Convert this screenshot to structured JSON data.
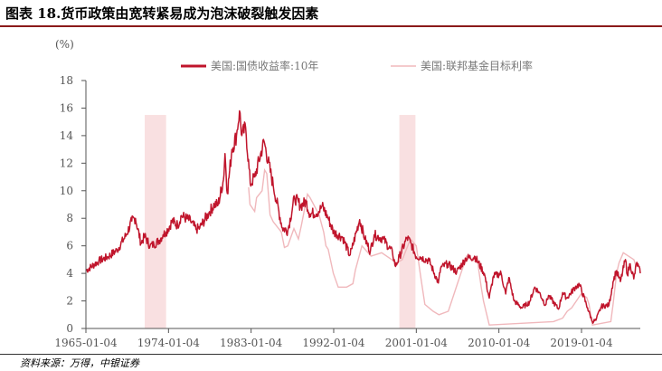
{
  "title": "图表 18.货币政策由宽转紧易成为泡沫破裂触发因素",
  "source": "资料来源：万得，中银证券",
  "chart_data": {
    "type": "line",
    "ylabel": "(%)",
    "ylim": [
      0,
      18
    ],
    "yticks": [
      0,
      2,
      4,
      6,
      8,
      10,
      12,
      14,
      16,
      18
    ],
    "xticks": [
      "1965-01-04",
      "1974-01-04",
      "1983-01-04",
      "1992-01-04",
      "2001-01-04",
      "2010-01-04",
      "2019-01-04"
    ],
    "xlim": [
      "1965-01-04",
      "2025-06-01"
    ],
    "colors": {
      "treasury": "#c0152c",
      "fed": "#f0b8bc",
      "shade": "#f9e0e1",
      "axis": "#555555"
    },
    "shaded_periods": [
      {
        "start": "1971-06-01",
        "end": "1973-10-01"
      },
      {
        "start": "1999-03-01",
        "end": "2000-12-01"
      }
    ],
    "series": [
      {
        "name": "美国:国债收益率:10年",
        "values": [
          [
            "1965-01-04",
            4.2
          ],
          [
            "1966-06-01",
            4.9
          ],
          [
            "1967-06-01",
            5.2
          ],
          [
            "1968-06-01",
            5.7
          ],
          [
            "1969-06-01",
            6.8
          ],
          [
            "1970-01-01",
            7.8
          ],
          [
            "1970-06-01",
            8.0
          ],
          [
            "1971-01-01",
            6.2
          ],
          [
            "1971-06-01",
            6.7
          ],
          [
            "1972-01-01",
            6.0
          ],
          [
            "1972-06-01",
            6.1
          ],
          [
            "1973-01-01",
            6.4
          ],
          [
            "1973-06-01",
            6.8
          ],
          [
            "1973-10-01",
            7.0
          ],
          [
            "1974-06-01",
            7.8
          ],
          [
            "1975-01-01",
            7.5
          ],
          [
            "1975-06-01",
            8.2
          ],
          [
            "1976-06-01",
            7.8
          ],
          [
            "1977-01-01",
            7.2
          ],
          [
            "1977-06-01",
            7.3
          ],
          [
            "1978-06-01",
            8.4
          ],
          [
            "1979-01-01",
            9.0
          ],
          [
            "1979-06-01",
            9.0
          ],
          [
            "1980-01-01",
            10.8
          ],
          [
            "1980-03-01",
            12.7
          ],
          [
            "1980-06-01",
            9.8
          ],
          [
            "1980-12-01",
            13.0
          ],
          [
            "1981-06-01",
            14.0
          ],
          [
            "1981-09-30",
            15.8
          ],
          [
            "1982-01-01",
            14.0
          ],
          [
            "1982-06-01",
            14.6
          ],
          [
            "1982-12-01",
            10.5
          ],
          [
            "1983-06-01",
            11.0
          ],
          [
            "1984-06-01",
            13.6
          ],
          [
            "1985-06-01",
            10.4
          ],
          [
            "1986-06-01",
            7.3
          ],
          [
            "1987-01-01",
            7.1
          ],
          [
            "1987-10-01",
            9.5
          ],
          [
            "1988-06-01",
            8.9
          ],
          [
            "1989-01-01",
            9.2
          ],
          [
            "1989-06-01",
            8.3
          ],
          [
            "1990-06-01",
            8.5
          ],
          [
            "1990-10-01",
            8.9
          ],
          [
            "1991-06-01",
            8.0
          ],
          [
            "1992-01-01",
            7.0
          ],
          [
            "1993-01-01",
            6.6
          ],
          [
            "1993-10-01",
            5.3
          ],
          [
            "1994-01-01",
            5.8
          ],
          [
            "1994-11-01",
            7.9
          ],
          [
            "1995-06-01",
            6.5
          ],
          [
            "1996-01-01",
            5.6
          ],
          [
            "1996-06-01",
            6.8
          ],
          [
            "1997-06-01",
            6.5
          ],
          [
            "1998-06-01",
            5.5
          ],
          [
            "1998-10-01",
            4.5
          ],
          [
            "1999-03-01",
            5.2
          ],
          [
            "2000-01-01",
            6.6
          ],
          [
            "2000-06-01",
            6.2
          ],
          [
            "2001-01-01",
            5.2
          ],
          [
            "2001-06-01",
            5.2
          ],
          [
            "2002-06-01",
            4.9
          ],
          [
            "2003-06-01",
            3.3
          ],
          [
            "2003-09-01",
            4.4
          ],
          [
            "2004-06-01",
            4.7
          ],
          [
            "2005-06-01",
            4.1
          ],
          [
            "2006-06-01",
            5.1
          ],
          [
            "2007-06-01",
            5.2
          ],
          [
            "2008-06-01",
            4.0
          ],
          [
            "2008-12-15",
            2.2
          ],
          [
            "2009-06-01",
            3.8
          ],
          [
            "2010-04-01",
            4.0
          ],
          [
            "2010-10-01",
            2.5
          ],
          [
            "2011-02-01",
            3.7
          ],
          [
            "2011-09-01",
            2.0
          ],
          [
            "2012-07-01",
            1.5
          ],
          [
            "2013-05-01",
            1.9
          ],
          [
            "2013-12-01",
            3.0
          ],
          [
            "2014-06-01",
            2.6
          ],
          [
            "2015-02-01",
            1.7
          ],
          [
            "2015-06-01",
            2.4
          ],
          [
            "2016-07-01",
            1.4
          ],
          [
            "2016-12-15",
            2.6
          ],
          [
            "2017-06-01",
            2.2
          ],
          [
            "2018-05-01",
            3.0
          ],
          [
            "2018-10-15",
            3.2
          ],
          [
            "2019-09-01",
            1.5
          ],
          [
            "2020-03-09",
            0.5
          ],
          [
            "2020-08-01",
            0.6
          ],
          [
            "2021-03-01",
            1.6
          ],
          [
            "2022-01-01",
            1.7
          ],
          [
            "2022-06-15",
            3.4
          ],
          [
            "2022-10-20",
            4.2
          ],
          [
            "2023-04-01",
            3.4
          ],
          [
            "2023-10-19",
            5.0
          ],
          [
            "2024-01-01",
            3.9
          ],
          [
            "2024-04-25",
            4.7
          ],
          [
            "2024-09-16",
            3.6
          ],
          [
            "2025-01-14",
            4.8
          ],
          [
            "2025-06-01",
            4.0
          ]
        ]
      },
      {
        "name": "美国:联邦基金目标利率",
        "values": [
          [
            "1982-09-27",
            10.25
          ],
          [
            "1982-11-19",
            9.0
          ],
          [
            "1983-05-25",
            8.5
          ],
          [
            "1983-08-08",
            9.5
          ],
          [
            "1984-03-15",
            10.0
          ],
          [
            "1984-06-25",
            11.5
          ],
          [
            "1984-09-20",
            11.25
          ],
          [
            "1985-01-28",
            8.25
          ],
          [
            "1985-06-01",
            7.75
          ],
          [
            "1986-04-21",
            7.0
          ],
          [
            "1986-08-21",
            5.88
          ],
          [
            "1987-01-01",
            6.0
          ],
          [
            "1987-09-04",
            7.25
          ],
          [
            "1988-03-01",
            6.5
          ],
          [
            "1988-06-30",
            7.5
          ],
          [
            "1989-02-24",
            9.75
          ],
          [
            "1989-06-06",
            9.5
          ],
          [
            "1990-06-01",
            8.25
          ],
          [
            "1990-12-01",
            7.0
          ],
          [
            "1991-03-01",
            6.0
          ],
          [
            "1991-06-01",
            5.75
          ],
          [
            "1991-12-20",
            4.0
          ],
          [
            "1992-07-02",
            3.0
          ],
          [
            "1993-06-01",
            3.0
          ],
          [
            "1994-02-04",
            3.25
          ],
          [
            "1994-05-17",
            4.25
          ],
          [
            "1995-02-01",
            6.0
          ],
          [
            "1996-01-31",
            5.25
          ],
          [
            "1997-03-25",
            5.5
          ],
          [
            "1998-11-17",
            4.75
          ],
          [
            "1999-06-30",
            5.0
          ],
          [
            "2000-05-16",
            6.5
          ],
          [
            "2001-01-03",
            6.0
          ],
          [
            "2001-06-27",
            3.75
          ],
          [
            "2001-12-11",
            1.75
          ],
          [
            "2002-11-06",
            1.25
          ],
          [
            "2003-06-25",
            1.0
          ],
          [
            "2004-06-30",
            1.25
          ],
          [
            "2005-06-30",
            3.25
          ],
          [
            "2006-06-29",
            5.25
          ],
          [
            "2007-09-18",
            4.75
          ],
          [
            "2008-01-30",
            3.0
          ],
          [
            "2008-04-30",
            2.0
          ],
          [
            "2008-12-16",
            0.25
          ],
          [
            "2015-12-16",
            0.5
          ],
          [
            "2016-12-14",
            0.75
          ],
          [
            "2017-06-14",
            1.25
          ],
          [
            "2017-12-13",
            1.5
          ],
          [
            "2018-06-13",
            2.0
          ],
          [
            "2018-12-19",
            2.5
          ],
          [
            "2019-07-31",
            2.25
          ],
          [
            "2019-10-30",
            1.75
          ],
          [
            "2020-03-15",
            0.25
          ],
          [
            "2022-03-16",
            0.5
          ],
          [
            "2022-06-15",
            1.75
          ],
          [
            "2022-11-02",
            4.0
          ],
          [
            "2023-02-01",
            4.75
          ],
          [
            "2023-07-26",
            5.5
          ],
          [
            "2024-09-18",
            5.0
          ],
          [
            "2024-12-18",
            4.5
          ],
          [
            "2025-06-01",
            4.5
          ]
        ]
      }
    ]
  }
}
